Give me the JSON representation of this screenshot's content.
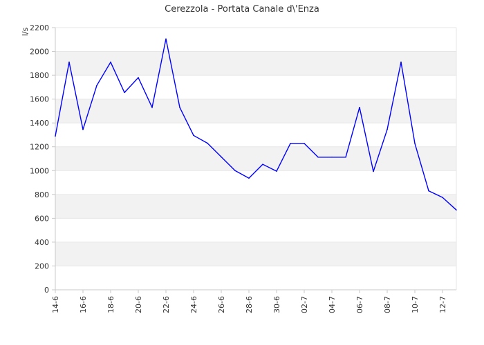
{
  "chart_data": {
    "type": "line",
    "title": "Cerezzola - Portata Canale d\\'Enza",
    "ylabel": "l/s",
    "xlabel": "",
    "ylim": [
      0,
      2200
    ],
    "yticks": [
      0,
      200,
      400,
      600,
      800,
      1000,
      1200,
      1400,
      1600,
      1800,
      2000,
      2200
    ],
    "grid": "horizontal alternating bands",
    "legend": "none",
    "x_ticks": [
      "14-6",
      "16-6",
      "18-6",
      "20-6",
      "22-6",
      "24-6",
      "26-6",
      "28-6",
      "30-6",
      "02-7",
      "04-7",
      "06-7",
      "08-7",
      "10-7",
      "12-7"
    ],
    "x": [
      "14-6",
      "15-6",
      "16-6",
      "17-6",
      "18-6",
      "19-6",
      "20-6",
      "21-6",
      "22-6",
      "23-6",
      "24-6",
      "25-6",
      "26-6",
      "27-6",
      "28-6",
      "29-6",
      "30-6",
      "01-7",
      "02-7",
      "03-7",
      "04-7",
      "05-7",
      "06-7",
      "07-7",
      "08-7",
      "09-7",
      "10-7",
      "11-7",
      "12-7",
      "13-7"
    ],
    "series": [
      {
        "color": "#0000ff",
        "values": [
          1290,
          1910,
          1345,
          1715,
          1910,
          1655,
          1780,
          1530,
          2105,
          1530,
          1295,
          1230,
          1115,
          1000,
          937,
          1053,
          995,
          1228,
          1228,
          1113,
          1113,
          1113,
          1530,
          993,
          1345,
          1910,
          1228,
          830,
          775,
          670
        ]
      }
    ],
    "band_color": "#f2f2f2",
    "axis_color": "#c8c8c8"
  }
}
